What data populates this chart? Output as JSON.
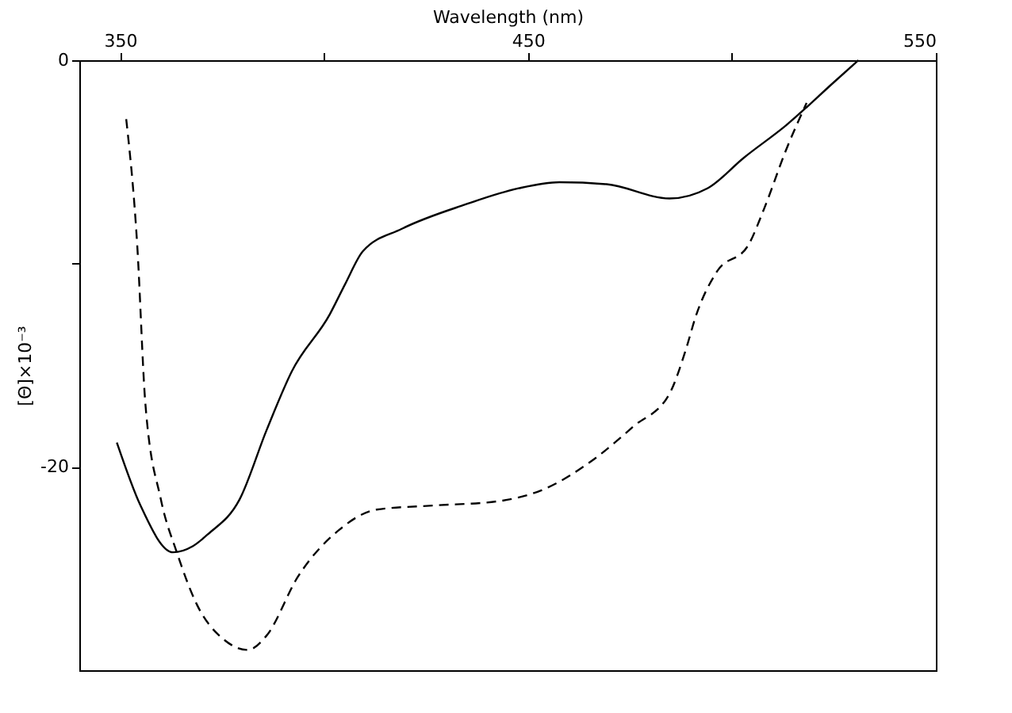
{
  "chart_data": {
    "type": "line",
    "xlabel": "Wavelength (nm)",
    "ylabel": "[Θ]×10⁻³",
    "xlim": [
      340,
      550
    ],
    "ylim": [
      -30,
      0
    ],
    "xticks": [
      350,
      {
        "value": 400,
        "label": null
      },
      450,
      {
        "value": 500,
        "label": null
      },
      550
    ],
    "yticks": [
      0,
      {
        "value": -10,
        "label": null
      },
      -20
    ],
    "grid": false,
    "marker": "none",
    "series": [
      {
        "color": "#000000",
        "line_style": "solid",
        "x": [
          349.2,
          355,
          363,
          367.8,
          371.6,
          379.3,
          385.9,
          392.1,
          401.4,
          405.2,
          409.5,
          419,
          434.6,
          447.7,
          457.7,
          469.3,
          484.7,
          494,
          502.9,
          513.3,
          524.9,
          531
        ],
        "values": [
          -18.8,
          -21.9,
          -24.2,
          -23.9,
          -23.3,
          -21.6,
          -18.2,
          -15.3,
          -12.5,
          -11,
          -9.4,
          -8.3,
          -7.1,
          -6.3,
          -6.0,
          -6.1,
          -6.8,
          -6.3,
          -4.8,
          -3.2,
          -1.1,
          0
        ]
      },
      {
        "color": "#000000",
        "line_style": "dashed",
        "x": [
          351.5,
          354.2,
          356.2,
          360,
          363.9,
          368.9,
          375.5,
          381.3,
          385.9,
          393.6,
          403.7,
          412.9,
          426.8,
          442.3,
          453.9,
          467,
          475.9,
          484.7,
          488.6,
          491.3,
          496.3,
          504,
          507.9,
          513.3,
          518.3
        ],
        "values": [
          -2.9,
          -9.1,
          -16.9,
          -21.6,
          -24.2,
          -26.8,
          -28.5,
          -29,
          -28.3,
          -25.4,
          -23.1,
          -22.1,
          -21.9,
          -21.7,
          -21.1,
          -19.5,
          -18,
          -16.4,
          -14.3,
          -12.5,
          -10.4,
          -9.1,
          -7.3,
          -4.4,
          -2.1
        ]
      }
    ]
  }
}
